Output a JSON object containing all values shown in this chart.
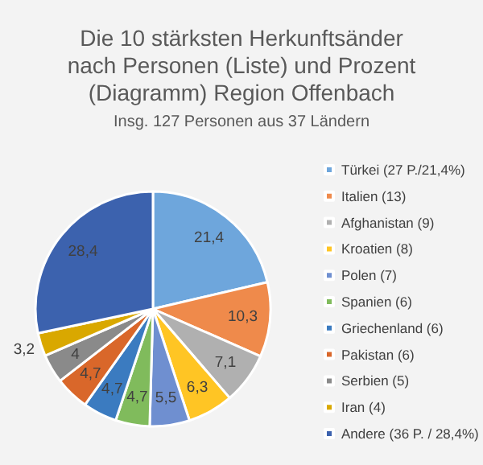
{
  "chart_data": {
    "type": "pie",
    "title": "Die 10 stärksten Herkunftsänder\nnach Personen (Liste) und Prozent\n(Diagramm) Region Offenbach",
    "subtitle": "Insg. 127 Personen aus 37 Ländern",
    "categories": [
      "Türkei (27 P./21,4%)",
      "Italien (13)",
      "Afghanistan (9)",
      "Kroatien (8)",
      "Polen (7)",
      "Spanien (6)",
      "Griechenland (6)",
      "Pakistan (6)",
      "Serbien (5)",
      "Iran (4)",
      "Andere (36 P. / 28,4%)"
    ],
    "values": [
      21.4,
      10.3,
      7.1,
      6.3,
      5.5,
      4.7,
      4.7,
      4.7,
      4,
      3.2,
      28.4
    ],
    "value_labels": [
      "21,4",
      "10,3",
      "7,1",
      "6,3",
      "5,5",
      "4,7",
      "4,7",
      "4,7",
      "4",
      "3,2",
      "28,4"
    ],
    "colors": [
      "#6ea6dc",
      "#ef8a4b",
      "#b0b0b0",
      "#ffc524",
      "#6f8fd0",
      "#80bb5c",
      "#3b7bc0",
      "#d9672a",
      "#8a8a8a",
      "#d9a800",
      "#3c62ae"
    ],
    "legend": "right"
  }
}
